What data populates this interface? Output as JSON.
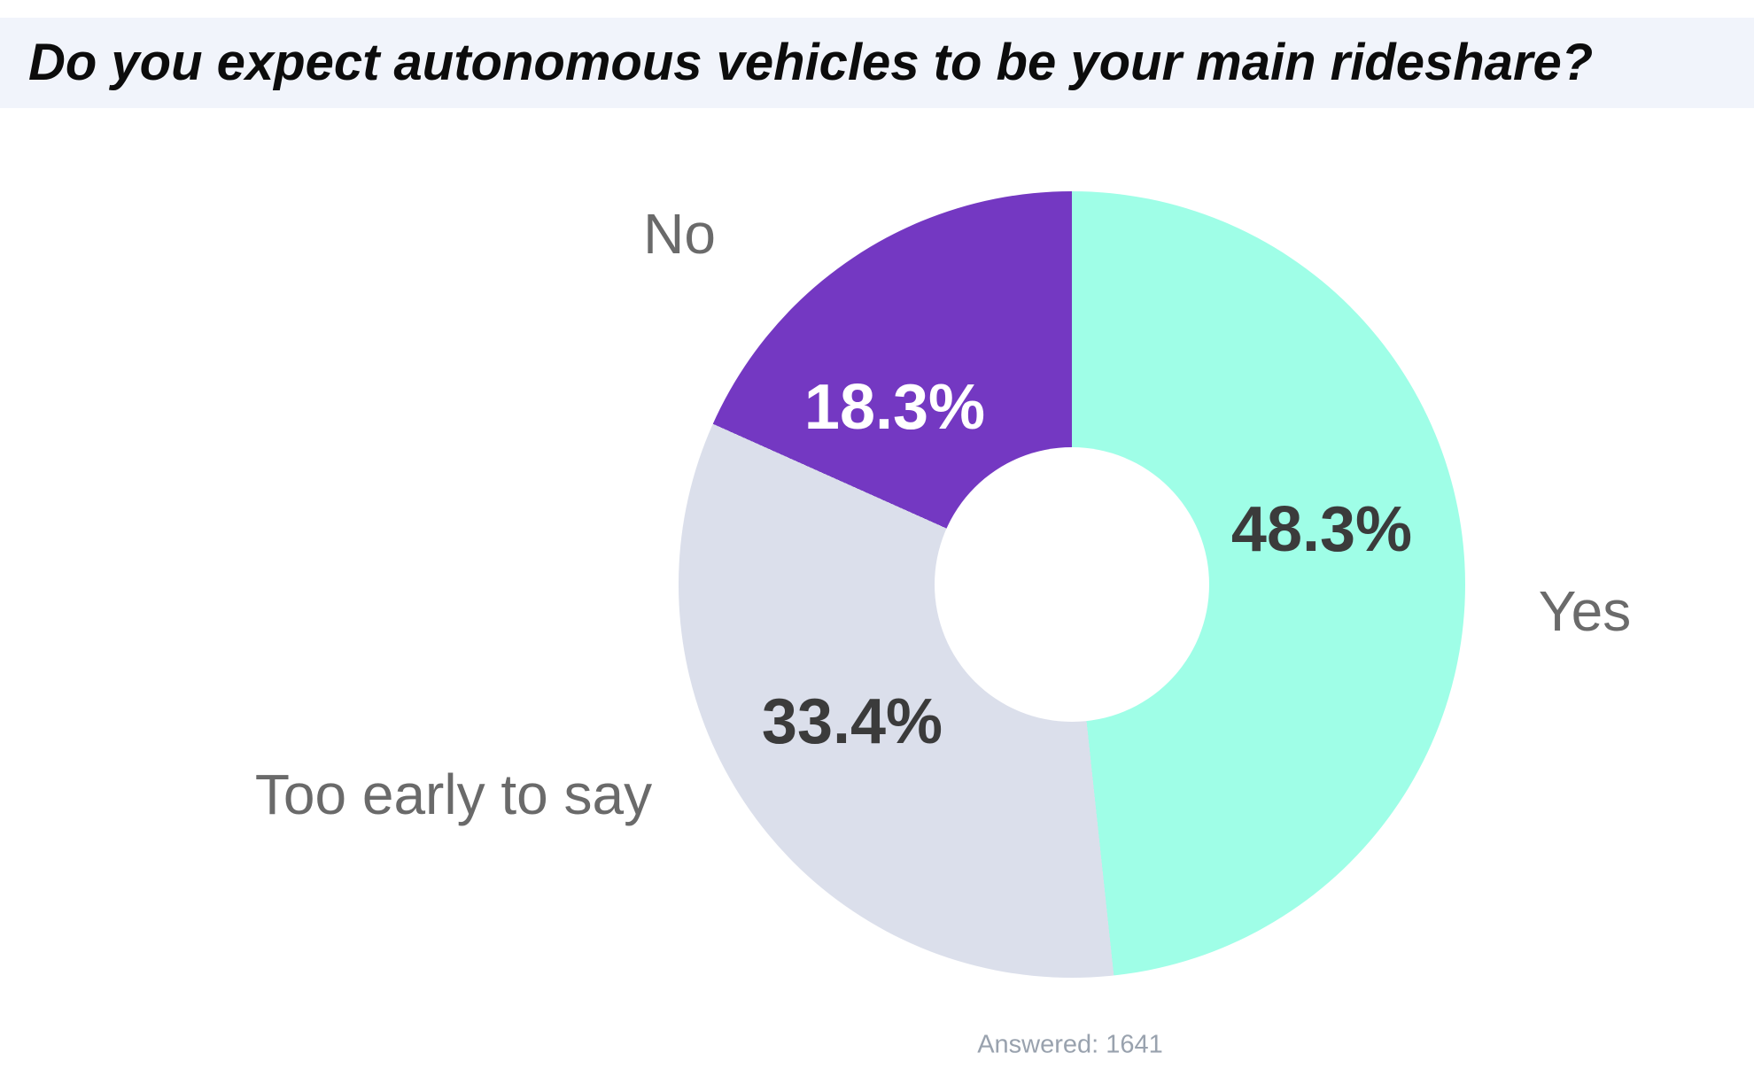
{
  "header": {
    "title": "Do you expect autonomous vehicles to be your main rideshare?"
  },
  "colors": {
    "header_bg": "#F1F4FB",
    "yes_slice": "#9FFEE7",
    "too_early_slice": "#DBDFEB",
    "no_slice": "#7438C2",
    "category_label": "#6A6A6A",
    "value_label_dark": "#3B3B3B",
    "value_label_light": "#FFFFFF",
    "footnote_text": "#99A2AE"
  },
  "chart_data": {
    "type": "pie",
    "donut": true,
    "title": "Do you expect autonomous vehicles to be your main rideshare?",
    "start_angle_deg": 0,
    "direction": "clockwise",
    "legend_position": "outside-radial",
    "slices": [
      {
        "label": "Yes",
        "value_pct": 48.3,
        "value_label": "48.3%",
        "color": "#9FFEE7",
        "value_color": "#3B3B3B"
      },
      {
        "label": "Too early to say",
        "value_pct": 33.4,
        "value_label": "33.4%",
        "color": "#DBDFEB",
        "value_color": "#3B3B3B"
      },
      {
        "label": "No",
        "value_pct": 18.3,
        "value_label": "18.3%",
        "color": "#7438C2",
        "value_color": "#FFFFFF"
      }
    ],
    "footnote": "Answered: 1641",
    "answered": 1641
  }
}
